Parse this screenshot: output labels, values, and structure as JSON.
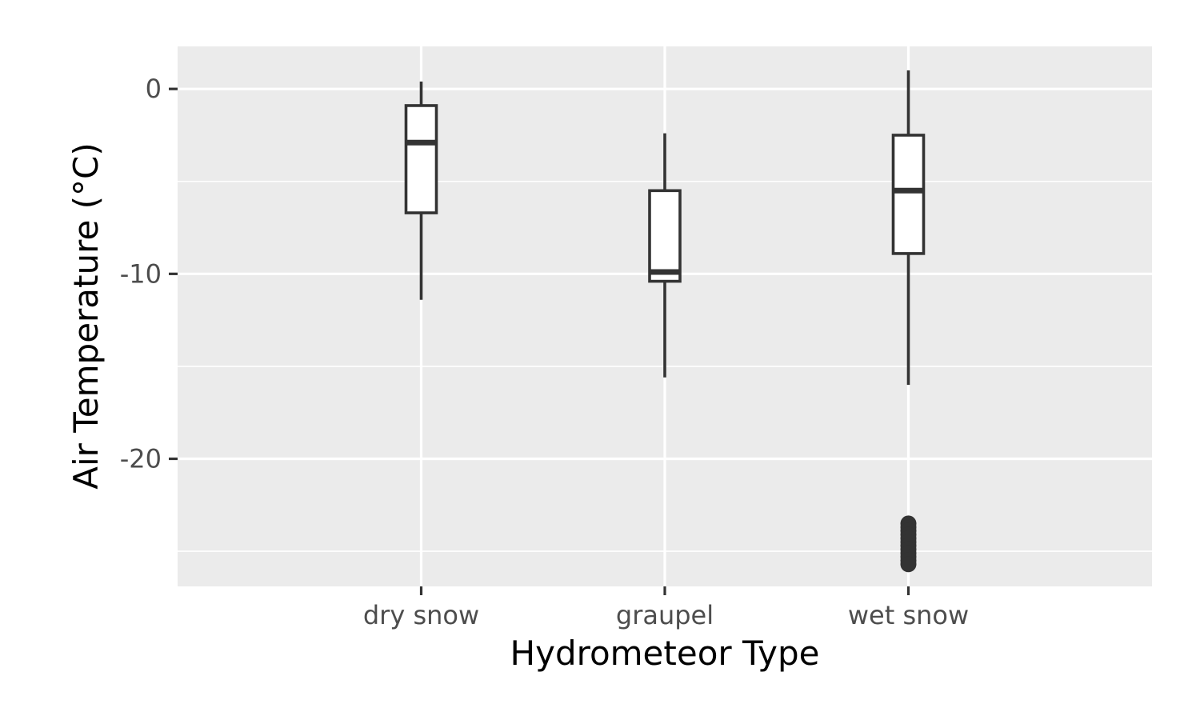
{
  "chart_data": {
    "type": "boxplot",
    "xlabel": "Hydrometeor Type",
    "ylabel": "Air Temperature (°C)",
    "ylim": [
      -26.9,
      2.3
    ],
    "y_ticks": [
      0,
      -10,
      -20
    ],
    "y_tick_labels": [
      "0",
      "-10",
      "-20"
    ],
    "y_minor_ticks": [
      -5,
      -15,
      -25
    ],
    "grid": true,
    "categories": [
      "dry snow",
      "graupel",
      "wet snow"
    ],
    "boxes": [
      {
        "category": "dry snow",
        "whisker_low": -11.4,
        "q1": -6.7,
        "median": -2.9,
        "q3": -0.9,
        "whisker_high": 0.4,
        "outliers": []
      },
      {
        "category": "graupel",
        "whisker_low": -15.6,
        "q1": -10.4,
        "median": -9.9,
        "q3": -5.5,
        "whisker_high": -2.4,
        "outliers": []
      },
      {
        "category": "wet snow",
        "whisker_low": -16.0,
        "q1": -8.9,
        "median": -5.5,
        "q3": -2.5,
        "whisker_high": 1.0,
        "outliers": [
          -23.5,
          -23.7,
          -23.9,
          -24.1,
          -24.3,
          -24.5,
          -24.7,
          -24.9,
          -25.1,
          -25.3,
          -25.5,
          -25.7
        ]
      }
    ],
    "colors": {
      "panel": "#ebebeb",
      "grid": "#ffffff",
      "box_fill": "#ffffff",
      "box_stroke": "#333333",
      "ticks": "#333333"
    }
  }
}
